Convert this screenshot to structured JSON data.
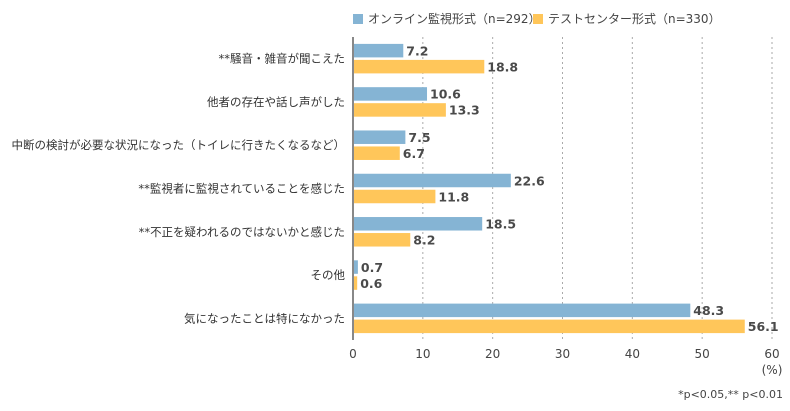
{
  "chart_data": {
    "type": "bar",
    "orientation": "horizontal",
    "title": "",
    "xlabel": "(%)",
    "ylabel": "",
    "xlim": [
      0,
      60
    ],
    "xticks": [
      0,
      10,
      20,
      30,
      40,
      50,
      60
    ],
    "grid": true,
    "legend_position": "top",
    "categories": [
      "**騒音・雑音が聞こえた",
      "他者の存在や話し声がした",
      "中断の検討が必要な状況になった（トイレに行きたくなるなど）",
      "**監視者に監視されていることを感じた",
      "**不正を疑われるのではないかと感じた",
      "その他",
      "気になったことは特になかった"
    ],
    "series": [
      {
        "name": "オンライン監視形式（n=292）",
        "color": "#85b4d4",
        "values": [
          7.2,
          10.6,
          7.5,
          22.6,
          18.5,
          0.7,
          48.3
        ]
      },
      {
        "name": "テストセンター形式（n=330）",
        "color": "#ffc65a",
        "values": [
          18.8,
          13.3,
          6.7,
          11.8,
          8.2,
          0.6,
          56.1
        ]
      }
    ],
    "footnote": "*p<0.05,** p<0.01"
  }
}
